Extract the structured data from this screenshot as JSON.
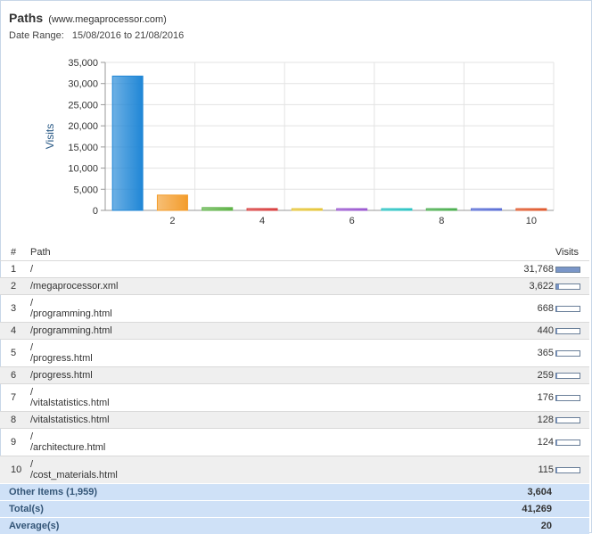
{
  "report": {
    "title": "Paths",
    "site": "(www.megaprocessor.com)",
    "date_range_label": "Date Range:",
    "date_range_value": "15/08/2016 to 21/08/2016"
  },
  "chart_data": {
    "type": "bar",
    "ylabel": "Visits",
    "xlabel": "",
    "x_tick_labels": [
      "2",
      "4",
      "6",
      "8",
      "10"
    ],
    "y_tick_labels": [
      "0",
      "5,000",
      "10,000",
      "15,000",
      "20,000",
      "25,000",
      "30,000",
      "35,000"
    ],
    "ylim": [
      0,
      35000
    ],
    "grid": true,
    "categories": [
      "1",
      "2",
      "3",
      "4",
      "5",
      "6",
      "7",
      "8",
      "9",
      "10"
    ],
    "values": [
      31768,
      3622,
      668,
      440,
      365,
      259,
      176,
      128,
      124,
      115
    ],
    "colors": [
      "#1f86d6",
      "#f39c2b",
      "#5fb348",
      "#d94040",
      "#e6c63a",
      "#9b59d0",
      "#2ec4c4",
      "#4caf50",
      "#5b6fd6",
      "#e05a2e"
    ]
  },
  "table": {
    "headers": {
      "num": "#",
      "path": "Path",
      "visits": "Visits"
    },
    "rows": [
      {
        "num": "1",
        "path": [
          "/"
        ],
        "visits": "31,768",
        "value": 31768
      },
      {
        "num": "2",
        "path": [
          "/megaprocessor.xml"
        ],
        "visits": "3,622",
        "value": 3622
      },
      {
        "num": "3",
        "path": [
          "/",
          "/programming.html"
        ],
        "visits": "668",
        "value": 668
      },
      {
        "num": "4",
        "path": [
          "/programming.html"
        ],
        "visits": "440",
        "value": 440
      },
      {
        "num": "5",
        "path": [
          "/",
          "/progress.html"
        ],
        "visits": "365",
        "value": 365
      },
      {
        "num": "6",
        "path": [
          "/progress.html"
        ],
        "visits": "259",
        "value": 259
      },
      {
        "num": "7",
        "path": [
          "/",
          "/vitalstatistics.html"
        ],
        "visits": "176",
        "value": 176
      },
      {
        "num": "8",
        "path": [
          "/vitalstatistics.html"
        ],
        "visits": "128",
        "value": 128
      },
      {
        "num": "9",
        "path": [
          "/",
          "/architecture.html"
        ],
        "visits": "124",
        "value": 124
      },
      {
        "num": "10",
        "path": [
          "/",
          "/cost_materials.html"
        ],
        "visits": "115",
        "value": 115
      }
    ],
    "summary": [
      {
        "label": "Other Items (1,959)",
        "value": "3,604"
      },
      {
        "label": "Total(s)",
        "value": "41,269"
      },
      {
        "label": "Average(s)",
        "value": "20"
      }
    ]
  }
}
